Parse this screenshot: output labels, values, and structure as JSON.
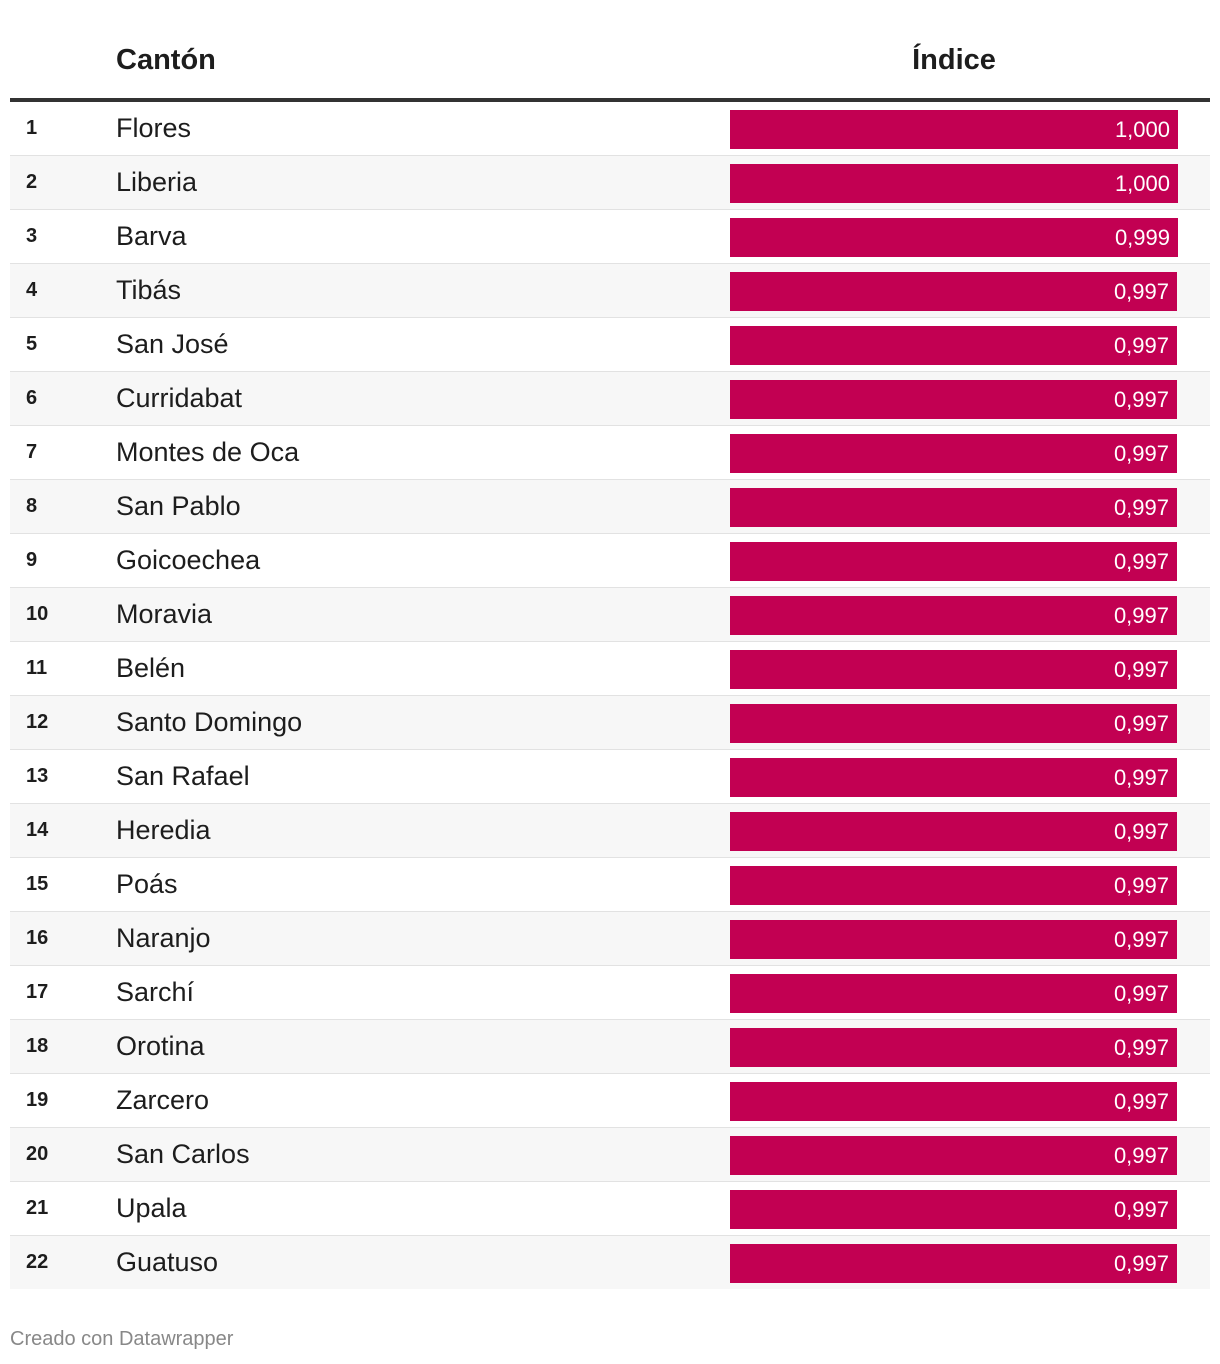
{
  "header": {
    "col_canton": "Cantón",
    "col_indice": "Índice"
  },
  "credit": "Creado con Datawrapper",
  "colors": {
    "bar": "#c20052"
  },
  "chart_data": {
    "type": "table",
    "columns": [
      "",
      "Cantón",
      "Índice"
    ],
    "xlim": [
      0,
      1.0
    ],
    "rows": [
      {
        "rank": "1",
        "canton": "Flores",
        "indice": 1.0,
        "label": "1,000"
      },
      {
        "rank": "2",
        "canton": "Liberia",
        "indice": 1.0,
        "label": "1,000"
      },
      {
        "rank": "3",
        "canton": "Barva",
        "indice": 0.999,
        "label": "0,999"
      },
      {
        "rank": "4",
        "canton": "Tibás",
        "indice": 0.997,
        "label": "0,997"
      },
      {
        "rank": "5",
        "canton": "San José",
        "indice": 0.997,
        "label": "0,997"
      },
      {
        "rank": "6",
        "canton": "Curridabat",
        "indice": 0.997,
        "label": "0,997"
      },
      {
        "rank": "7",
        "canton": "Montes de Oca",
        "indice": 0.997,
        "label": "0,997"
      },
      {
        "rank": "8",
        "canton": "San Pablo",
        "indice": 0.997,
        "label": "0,997"
      },
      {
        "rank": "9",
        "canton": "Goicoechea",
        "indice": 0.997,
        "label": "0,997"
      },
      {
        "rank": "10",
        "canton": "Moravia",
        "indice": 0.997,
        "label": "0,997"
      },
      {
        "rank": "11",
        "canton": "Belén",
        "indice": 0.997,
        "label": "0,997"
      },
      {
        "rank": "12",
        "canton": "Santo Domingo",
        "indice": 0.997,
        "label": "0,997"
      },
      {
        "rank": "13",
        "canton": "San Rafael",
        "indice": 0.997,
        "label": "0,997"
      },
      {
        "rank": "14",
        "canton": "Heredia",
        "indice": 0.997,
        "label": "0,997"
      },
      {
        "rank": "15",
        "canton": "Poás",
        "indice": 0.997,
        "label": "0,997"
      },
      {
        "rank": "16",
        "canton": "Naranjo",
        "indice": 0.997,
        "label": "0,997"
      },
      {
        "rank": "17",
        "canton": "Sarchí",
        "indice": 0.997,
        "label": "0,997"
      },
      {
        "rank": "18",
        "canton": "Orotina",
        "indice": 0.997,
        "label": "0,997"
      },
      {
        "rank": "19",
        "canton": "Zarcero",
        "indice": 0.997,
        "label": "0,997"
      },
      {
        "rank": "20",
        "canton": "San Carlos",
        "indice": 0.997,
        "label": "0,997"
      },
      {
        "rank": "21",
        "canton": "Upala",
        "indice": 0.997,
        "label": "0,997"
      },
      {
        "rank": "22",
        "canton": "Guatuso",
        "indice": 0.997,
        "label": "0,997"
      }
    ]
  }
}
